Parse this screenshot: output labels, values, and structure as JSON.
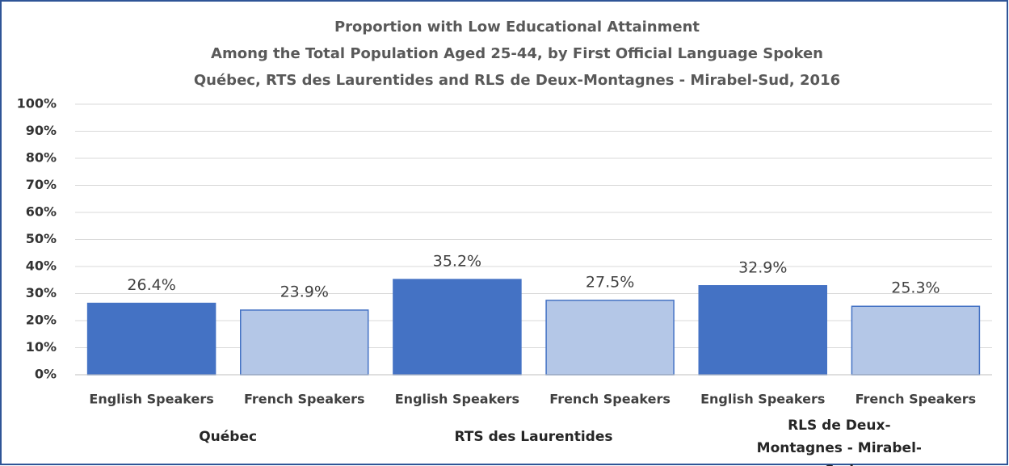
{
  "chart_data": {
    "type": "bar",
    "title": [
      "Proportion with Low Educational Attainment",
      "Among the Total Population Aged 25-44, by First Official Language Spoken",
      "Québec, RTS des Laurentides and RLS de Deux-Montagnes - Mirabel-Sud, 2016"
    ],
    "categories": [
      "English Speakers",
      "French Speakers",
      "English Speakers",
      "French Speakers",
      "English Speakers",
      "French Speakers"
    ],
    "groups": [
      "Québec",
      "RTS des Laurentides",
      "RLS de Deux-Montagnes - Mirabel-Sud"
    ],
    "values": [
      26.4,
      23.9,
      35.2,
      27.5,
      32.9,
      25.3
    ],
    "value_labels": [
      "26.4%",
      "23.9%",
      "35.2%",
      "27.5%",
      "32.9%",
      "25.3%"
    ],
    "colors": [
      "#4472c4",
      "#b4c7e7",
      "#4472c4",
      "#b4c7e7",
      "#4472c4",
      "#b4c7e7"
    ],
    "ylim": [
      0,
      100
    ],
    "yticks": [
      {
        "value": 0,
        "label": "0%"
      },
      {
        "value": 10,
        "label": "10%"
      },
      {
        "value": 20,
        "label": "20%"
      },
      {
        "value": 30,
        "label": "30%"
      },
      {
        "value": 40,
        "label": "40%"
      },
      {
        "value": 50,
        "label": "50%"
      },
      {
        "value": 60,
        "label": "60%"
      },
      {
        "value": 70,
        "label": "70%"
      },
      {
        "value": 80,
        "label": "80%"
      },
      {
        "value": 90,
        "label": "90%"
      },
      {
        "value": 100,
        "label": "100%"
      }
    ],
    "grid": true
  }
}
